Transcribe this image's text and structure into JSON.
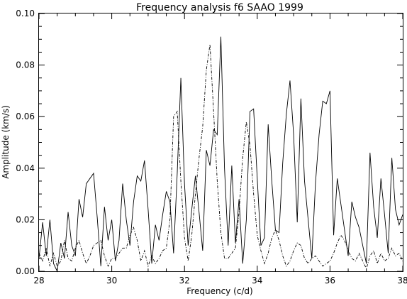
{
  "chart_data": {
    "type": "line",
    "title": "Frequency analysis f6 SAAO 1999",
    "xlabel": "Frequency (c/d)",
    "ylabel": "Amplitude (km/s)",
    "xlim": [
      28,
      38
    ],
    "ylim": [
      0.0,
      0.1
    ],
    "x_ticks": [
      "28",
      "30",
      "32",
      "34",
      "36",
      "38"
    ],
    "y_ticks": [
      "0.00",
      "0.02",
      "0.04",
      "0.06",
      "0.08",
      "0.10"
    ],
    "grid": false,
    "legend": "none",
    "series": [
      {
        "style": "solid",
        "x": [
          28.0,
          28.1,
          28.2,
          28.3,
          28.4,
          28.5,
          28.6,
          28.7,
          28.8,
          28.9,
          29.0,
          29.1,
          29.2,
          29.3,
          29.4,
          29.5,
          29.6,
          29.7,
          29.8,
          29.9,
          30.0,
          30.1,
          30.2,
          30.3,
          30.4,
          30.5,
          30.6,
          30.7,
          30.8,
          30.9,
          31.0,
          31.1,
          31.2,
          31.3,
          31.4,
          31.5,
          31.6,
          31.7,
          31.8,
          31.9,
          32.0,
          32.1,
          32.2,
          32.3,
          32.4,
          32.5,
          32.6,
          32.7,
          32.8,
          32.9,
          33.0,
          33.1,
          33.2,
          33.3,
          33.4,
          33.5,
          33.6,
          33.7,
          33.8,
          33.9,
          34.0,
          34.1,
          34.2,
          34.3,
          34.4,
          34.5,
          34.6,
          34.7,
          34.8,
          34.9,
          35.0,
          35.1,
          35.2,
          35.3,
          35.4,
          35.5,
          35.6,
          35.7,
          35.8,
          35.9,
          36.0,
          36.1,
          36.2,
          36.3,
          36.4,
          36.5,
          36.6,
          36.7,
          36.8,
          36.9,
          37.0,
          37.1,
          37.2,
          37.3,
          37.4,
          37.5,
          37.6,
          37.7,
          37.8,
          37.9,
          38.0
        ],
        "y": [
          0.005,
          0.019,
          0.006,
          0.02,
          0.003,
          0.0,
          0.011,
          0.005,
          0.023,
          0.01,
          0.006,
          0.028,
          0.021,
          0.034,
          0.036,
          0.038,
          0.021,
          0.002,
          0.025,
          0.012,
          0.02,
          0.004,
          0.012,
          0.034,
          0.02,
          0.01,
          0.027,
          0.037,
          0.035,
          0.043,
          0.024,
          0.003,
          0.018,
          0.012,
          0.022,
          0.031,
          0.027,
          0.007,
          0.038,
          0.075,
          0.034,
          0.01,
          0.024,
          0.037,
          0.023,
          0.008,
          0.047,
          0.041,
          0.055,
          0.053,
          0.091,
          0.04,
          0.01,
          0.041,
          0.011,
          0.028,
          0.003,
          0.02,
          0.062,
          0.063,
          0.036,
          0.01,
          0.013,
          0.057,
          0.035,
          0.016,
          0.015,
          0.042,
          0.061,
          0.074,
          0.053,
          0.019,
          0.067,
          0.035,
          0.02,
          0.005,
          0.034,
          0.053,
          0.066,
          0.065,
          0.07,
          0.014,
          0.036,
          0.026,
          0.016,
          0.006,
          0.027,
          0.021,
          0.017,
          0.01,
          0.003,
          0.046,
          0.025,
          0.013,
          0.036,
          0.022,
          0.007,
          0.044,
          0.024,
          0.018,
          0.022
        ]
      },
      {
        "style": "dashed",
        "x": [
          28.0,
          28.1,
          28.2,
          28.3,
          28.4,
          28.5,
          28.6,
          28.7,
          28.8,
          28.9,
          29.0,
          29.1,
          29.2,
          29.3,
          29.4,
          29.5,
          29.6,
          29.7,
          29.8,
          29.9,
          30.0,
          30.1,
          30.2,
          30.3,
          30.4,
          30.5,
          30.6,
          30.7,
          30.8,
          30.9,
          31.0,
          31.1,
          31.2,
          31.3,
          31.4,
          31.5,
          31.6,
          31.7,
          31.8,
          31.9,
          32.0,
          32.1,
          32.2,
          32.3,
          32.4,
          32.5,
          32.6,
          32.7,
          32.8,
          32.9,
          33.0,
          33.1,
          33.2,
          33.3,
          33.4,
          33.5,
          33.6,
          33.7,
          33.8,
          33.9,
          34.0,
          34.1,
          34.2,
          34.3,
          34.4,
          34.5,
          34.6,
          34.7,
          34.8,
          34.9,
          35.0,
          35.1,
          35.2,
          35.3,
          35.4,
          35.5,
          35.6,
          35.7,
          35.8,
          35.9,
          36.0,
          36.1,
          36.2,
          36.3,
          36.4,
          36.5,
          36.6,
          36.7,
          36.8,
          36.9,
          37.0,
          37.1,
          37.2,
          37.3,
          37.4,
          37.5,
          37.6,
          37.7,
          37.8,
          37.9,
          38.0
        ],
        "y": [
          0.007,
          0.004,
          0.009,
          0.002,
          0.007,
          0.002,
          0.004,
          0.012,
          0.005,
          0.004,
          0.009,
          0.012,
          0.007,
          0.003,
          0.006,
          0.01,
          0.011,
          0.012,
          0.006,
          0.002,
          0.005,
          0.005,
          0.007,
          0.009,
          0.009,
          0.014,
          0.017,
          0.012,
          0.004,
          0.008,
          0.002,
          0.006,
          0.003,
          0.005,
          0.008,
          0.009,
          0.02,
          0.06,
          0.062,
          0.035,
          0.013,
          0.004,
          0.014,
          0.03,
          0.044,
          0.056,
          0.078,
          0.088,
          0.062,
          0.035,
          0.015,
          0.005,
          0.005,
          0.007,
          0.009,
          0.023,
          0.044,
          0.058,
          0.049,
          0.03,
          0.014,
          0.008,
          0.003,
          0.007,
          0.013,
          0.016,
          0.012,
          0.006,
          0.002,
          0.004,
          0.008,
          0.011,
          0.01,
          0.005,
          0.003,
          0.005,
          0.006,
          0.004,
          0.002,
          0.003,
          0.004,
          0.007,
          0.011,
          0.014,
          0.012,
          0.008,
          0.005,
          0.004,
          0.007,
          0.004,
          0.001,
          0.006,
          0.008,
          0.003,
          0.007,
          0.004,
          0.005,
          0.009,
          0.006,
          0.007,
          0.004
        ]
      }
    ]
  }
}
